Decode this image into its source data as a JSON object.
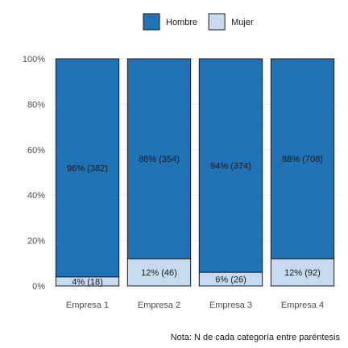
{
  "chart_data": {
    "type": "bar",
    "stacked": true,
    "percent": true,
    "categories": [
      "Empresa 1",
      "Empresa 2",
      "Empresa 3",
      "Empresa 4"
    ],
    "series": [
      {
        "name": "Hombre",
        "color": "#2171b5",
        "values": [
          96,
          88,
          94,
          88
        ],
        "labels": [
          "96% (382)",
          "88% (354)",
          "94% (374)",
          "88% (708)"
        ]
      },
      {
        "name": "Mujer",
        "color": "#c6dbef",
        "values": [
          4,
          12,
          6,
          12
        ],
        "labels": [
          "4% (18)",
          "12% (46)",
          "6% (26)",
          "12% (92)"
        ]
      }
    ],
    "ylim": [
      0,
      100
    ],
    "yticks": [
      "0%",
      "20%",
      "40%",
      "60%",
      "80%",
      "100%"
    ],
    "ytick_values": [
      0,
      20,
      40,
      60,
      80,
      100
    ],
    "legend_position": "top",
    "grid": true,
    "caption": "Nota: N de cada categoría entre paréntesis"
  }
}
